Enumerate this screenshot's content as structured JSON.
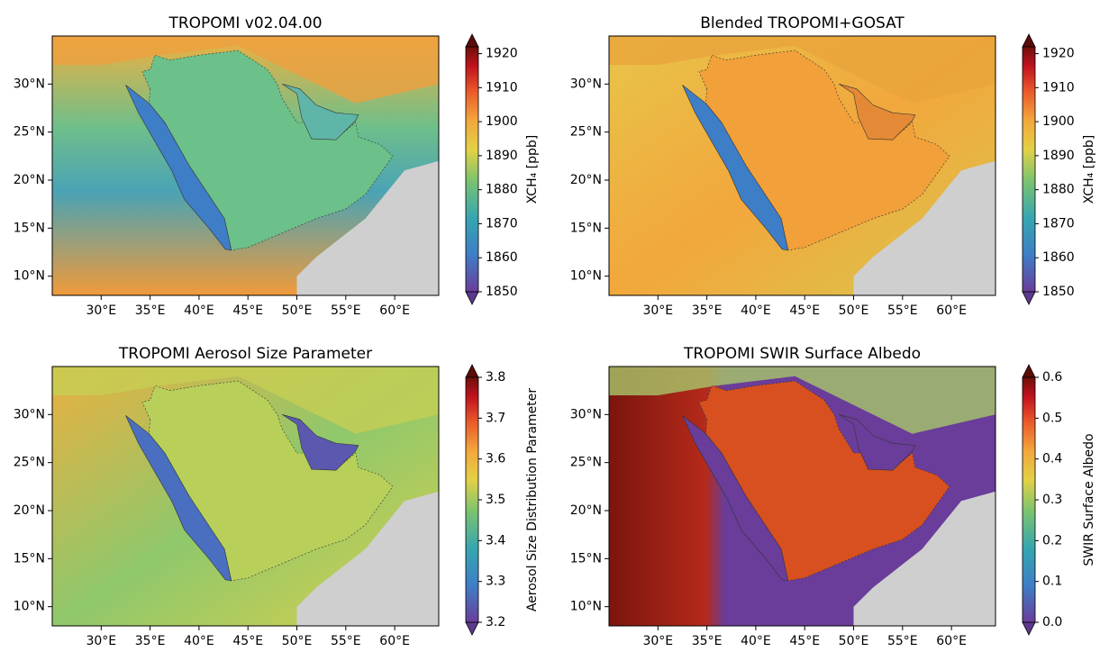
{
  "panels": [
    {
      "title": "TROPOMI v02.04.00",
      "xlim": [
        25,
        64.5
      ],
      "ylim": [
        8,
        35
      ],
      "xticks": [
        {
          "value": 30,
          "label": "30°E"
        },
        {
          "value": 35,
          "label": "35°E"
        },
        {
          "value": 40,
          "label": "40°E"
        },
        {
          "value": 45,
          "label": "45°E"
        },
        {
          "value": 50,
          "label": "50°E"
        },
        {
          "value": 55,
          "label": "55°E"
        },
        {
          "value": 60,
          "label": "60°E"
        }
      ],
      "yticks": [
        {
          "value": 10,
          "label": "10°N"
        },
        {
          "value": 15,
          "label": "15°N"
        },
        {
          "value": 20,
          "label": "20°N"
        },
        {
          "value": 25,
          "label": "25°N"
        },
        {
          "value": 30,
          "label": "30°N"
        }
      ],
      "colorbar": {
        "label": "XCH₄ [ppb]",
        "lim": [
          1850,
          1922
        ],
        "ticks": [
          1850,
          1860,
          1870,
          1880,
          1890,
          1900,
          1910,
          1920
        ]
      }
    },
    {
      "title": "Blended TROPOMI+GOSAT",
      "xlim": [
        25,
        64.5
      ],
      "ylim": [
        8,
        35
      ],
      "xticks": [
        {
          "value": 30,
          "label": "30°E"
        },
        {
          "value": 35,
          "label": "35°E"
        },
        {
          "value": 40,
          "label": "40°E"
        },
        {
          "value": 45,
          "label": "45°E"
        },
        {
          "value": 50,
          "label": "50°E"
        },
        {
          "value": 55,
          "label": "55°E"
        },
        {
          "value": 60,
          "label": "60°E"
        }
      ],
      "yticks": [
        {
          "value": 10,
          "label": "10°N"
        },
        {
          "value": 15,
          "label": "15°N"
        },
        {
          "value": 20,
          "label": "20°N"
        },
        {
          "value": 25,
          "label": "25°N"
        },
        {
          "value": 30,
          "label": "30°N"
        }
      ],
      "colorbar": {
        "label": "XCH₄ [ppb]",
        "lim": [
          1850,
          1922
        ],
        "ticks": [
          1850,
          1860,
          1870,
          1880,
          1890,
          1900,
          1910,
          1920
        ]
      }
    },
    {
      "title": "TROPOMI Aerosol Size Parameter",
      "xlim": [
        25,
        64.5
      ],
      "ylim": [
        8,
        35
      ],
      "xticks": [
        {
          "value": 30,
          "label": "30°E"
        },
        {
          "value": 35,
          "label": "35°E"
        },
        {
          "value": 40,
          "label": "40°E"
        },
        {
          "value": 45,
          "label": "45°E"
        },
        {
          "value": 50,
          "label": "50°E"
        },
        {
          "value": 55,
          "label": "55°E"
        },
        {
          "value": 60,
          "label": "60°E"
        }
      ],
      "yticks": [
        {
          "value": 10,
          "label": "10°N"
        },
        {
          "value": 15,
          "label": "15°N"
        },
        {
          "value": 20,
          "label": "20°N"
        },
        {
          "value": 25,
          "label": "25°N"
        },
        {
          "value": 30,
          "label": "30°N"
        }
      ],
      "colorbar": {
        "label": "Aerosol Size Distribution Parameter",
        "lim": [
          3.2,
          3.8
        ],
        "ticks": [
          3.2,
          3.3,
          3.4,
          3.5,
          3.6,
          3.7,
          3.8
        ]
      }
    },
    {
      "title": "TROPOMI SWIR Surface Albedo",
      "xlim": [
        25,
        64.5
      ],
      "ylim": [
        8,
        35
      ],
      "xticks": [
        {
          "value": 30,
          "label": "30°E"
        },
        {
          "value": 35,
          "label": "35°E"
        },
        {
          "value": 40,
          "label": "40°E"
        },
        {
          "value": 45,
          "label": "45°E"
        },
        {
          "value": 50,
          "label": "50°E"
        },
        {
          "value": 55,
          "label": "55°E"
        },
        {
          "value": 60,
          "label": "60°E"
        }
      ],
      "yticks": [
        {
          "value": 10,
          "label": "10°N"
        },
        {
          "value": 15,
          "label": "15°N"
        },
        {
          "value": 20,
          "label": "20°N"
        },
        {
          "value": 25,
          "label": "25°N"
        },
        {
          "value": 30,
          "label": "30°N"
        }
      ],
      "colorbar": {
        "label": "SWIR Surface Albedo",
        "lim": [
          0,
          0.6
        ],
        "ticks": [
          {
            "value": 0,
            "label": "0.0"
          },
          0.1,
          0.2,
          0.3,
          0.4,
          0.5,
          0.6
        ]
      }
    }
  ]
}
